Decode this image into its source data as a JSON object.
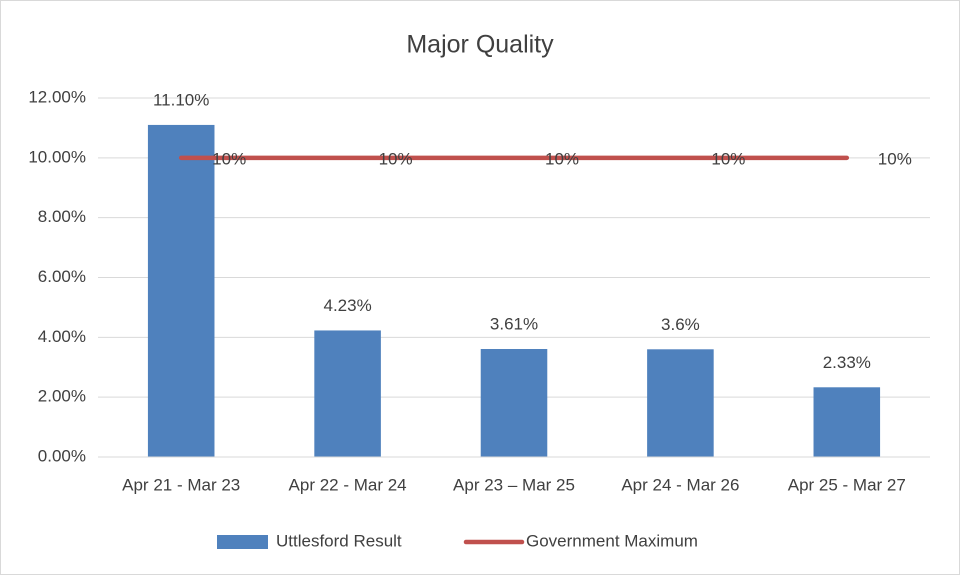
{
  "chart_data": {
    "type": "bar",
    "title": "Major Quality",
    "categories": [
      "Apr 21 - Mar 23",
      "Apr 22 - Mar 24",
      "Apr 23 – Mar 25",
      "Apr 24 - Mar 26",
      "Apr 25 - Mar 27"
    ],
    "series": [
      {
        "name": "Uttlesford Result",
        "type": "bar",
        "color": "#4f81bd",
        "values": [
          11.1,
          4.23,
          3.61,
          3.6,
          2.33
        ],
        "value_labels": [
          "11.10%",
          "4.23%",
          "3.61%",
          "3.6%",
          "2.33%"
        ]
      },
      {
        "name": "Government Maximum",
        "type": "line",
        "color": "#c0504d",
        "values": [
          10,
          10,
          10,
          10,
          10
        ],
        "value_labels": [
          "10%",
          "10%",
          "10%",
          "10%",
          "10%"
        ]
      }
    ],
    "ylim": [
      0,
      12
    ],
    "yticks": [
      {
        "value": 0,
        "label": "0.00%"
      },
      {
        "value": 2,
        "label": "2.00%"
      },
      {
        "value": 4,
        "label": "4.00%"
      },
      {
        "value": 6,
        "label": "6.00%"
      },
      {
        "value": 8,
        "label": "8.00%"
      },
      {
        "value": 10,
        "label": "10.00%"
      },
      {
        "value": 12,
        "label": "12.00%"
      }
    ],
    "grid": true,
    "legend": "bottom"
  }
}
